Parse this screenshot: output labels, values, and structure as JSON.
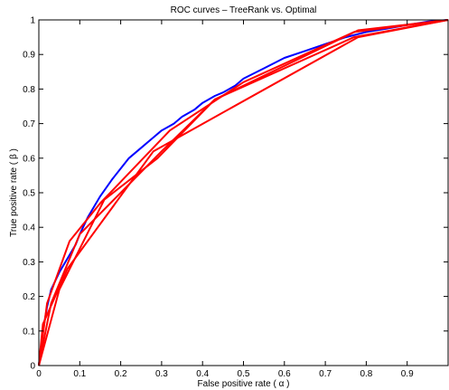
{
  "chart_data": {
    "type": "line",
    "title": "ROC curves – TreeRank vs. Optimal",
    "xlabel": "False positive rate ( α )",
    "ylabel": "True positive rate ( β )",
    "xlim": [
      0,
      1
    ],
    "ylim": [
      0,
      1
    ],
    "xticks": [
      "0",
      "0.1",
      "0.2",
      "0.3",
      "0.4",
      "0.5",
      "0.6",
      "0.7",
      "0.8",
      "0.9"
    ],
    "yticks": [
      "0",
      "0.1",
      "0.2",
      "0.3",
      "0.4",
      "0.5",
      "0.6",
      "0.7",
      "0.8",
      "0.9",
      "1"
    ],
    "grid": false,
    "series": [
      {
        "color": "#0000ff",
        "x": [
          0,
          0.005,
          0.01,
          0.02,
          0.03,
          0.05,
          0.07,
          0.09,
          0.1,
          0.12,
          0.15,
          0.18,
          0.2,
          0.22,
          0.25,
          0.28,
          0.3,
          0.33,
          0.35,
          0.38,
          0.4,
          0.43,
          0.45,
          0.48,
          0.5,
          0.55,
          0.6,
          0.65,
          0.7,
          0.75,
          0.8,
          0.85,
          0.9,
          0.95,
          1.0
        ],
        "y": [
          0,
          0.05,
          0.1,
          0.17,
          0.22,
          0.27,
          0.31,
          0.35,
          0.38,
          0.43,
          0.49,
          0.54,
          0.57,
          0.6,
          0.63,
          0.66,
          0.68,
          0.7,
          0.72,
          0.74,
          0.76,
          0.78,
          0.79,
          0.81,
          0.83,
          0.86,
          0.89,
          0.91,
          0.93,
          0.95,
          0.965,
          0.975,
          0.985,
          0.995,
          1.0
        ]
      },
      {
        "color": "#ff0000",
        "x": [
          0,
          0.03,
          0.1,
          0.3,
          0.43,
          0.77,
          1.0
        ],
        "y": [
          0,
          0.18,
          0.38,
          0.62,
          0.77,
          0.95,
          1.0
        ]
      },
      {
        "color": "#ff0000",
        "x": [
          0,
          0.01,
          0.07,
          0.28,
          0.78,
          1.0
        ],
        "y": [
          0,
          0.12,
          0.28,
          0.62,
          0.95,
          1.0
        ]
      },
      {
        "color": "#ff0000",
        "x": [
          0,
          0.02,
          0.075,
          0.15,
          0.32,
          0.5,
          0.77,
          1.0
        ],
        "y": [
          0,
          0.18,
          0.36,
          0.47,
          0.68,
          0.82,
          0.965,
          1.0
        ]
      },
      {
        "color": "#ff0000",
        "x": [
          0,
          0.05,
          0.16,
          0.29,
          0.43,
          0.78,
          1.0
        ],
        "y": [
          0,
          0.22,
          0.48,
          0.6,
          0.77,
          0.97,
          1.0
        ]
      }
    ]
  }
}
